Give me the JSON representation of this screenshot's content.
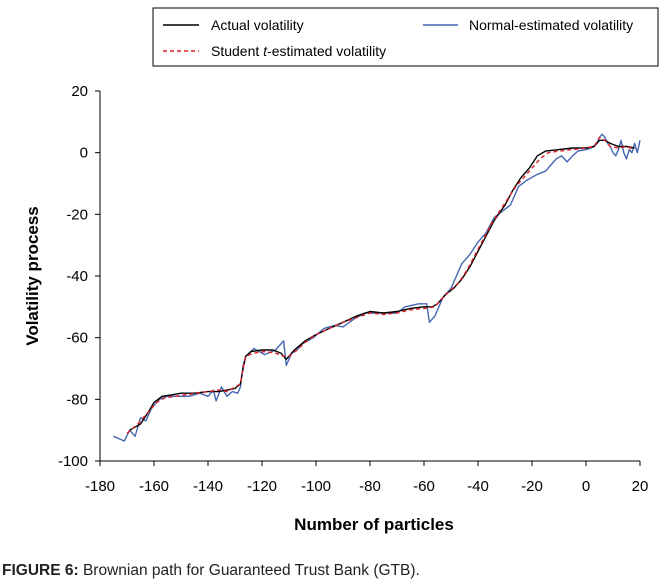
{
  "caption": {
    "label": "FIGURE 6:",
    "text": " Brownian path for Guaranteed Trust Bank (GTB)."
  },
  "chart_data": {
    "type": "line",
    "title": "",
    "xlabel": "Number of particles",
    "ylabel": "Volatility process",
    "xlim": [
      -180,
      20
    ],
    "ylim": [
      -100,
      20
    ],
    "xticks": [
      -180,
      -160,
      -140,
      -120,
      -100,
      -80,
      -60,
      -40,
      -20,
      0,
      20
    ],
    "yticks": [
      -100,
      -80,
      -60,
      -40,
      -20,
      0,
      20
    ],
    "grid": false,
    "legend_position": "top",
    "series": [
      {
        "name": "Actual volatility",
        "color": "#000000",
        "style": "solid",
        "points": [
          [
            -169,
            -90
          ],
          [
            -165,
            -88
          ],
          [
            -162,
            -84
          ],
          [
            -160,
            -81
          ],
          [
            -157,
            -79
          ],
          [
            -153,
            -78.5
          ],
          [
            -150,
            -78
          ],
          [
            -145,
            -78
          ],
          [
            -140,
            -77.5
          ],
          [
            -136,
            -77.5
          ],
          [
            -133,
            -77
          ],
          [
            -130,
            -76.5
          ],
          [
            -128,
            -75
          ],
          [
            -127,
            -70
          ],
          [
            -126,
            -66
          ],
          [
            -124,
            -64.5
          ],
          [
            -120,
            -64
          ],
          [
            -116,
            -64
          ],
          [
            -113,
            -65
          ],
          [
            -111,
            -67
          ],
          [
            -108,
            -64
          ],
          [
            -104,
            -61
          ],
          [
            -100,
            -59
          ],
          [
            -95,
            -57
          ],
          [
            -90,
            -55
          ],
          [
            -85,
            -53
          ],
          [
            -80,
            -51.5
          ],
          [
            -75,
            -52
          ],
          [
            -70,
            -51.5
          ],
          [
            -65,
            -50.5
          ],
          [
            -60,
            -50
          ],
          [
            -57,
            -50
          ],
          [
            -55,
            -49
          ],
          [
            -52,
            -46
          ],
          [
            -49,
            -44
          ],
          [
            -46,
            -41
          ],
          [
            -43,
            -37
          ],
          [
            -40,
            -32
          ],
          [
            -37,
            -27
          ],
          [
            -34,
            -22
          ],
          [
            -30,
            -17
          ],
          [
            -27,
            -12
          ],
          [
            -24,
            -8
          ],
          [
            -21,
            -5
          ],
          [
            -18,
            -1
          ],
          [
            -15,
            0.5
          ],
          [
            -10,
            1
          ],
          [
            -5,
            1.5
          ],
          [
            0,
            1.5
          ],
          [
            3,
            2
          ],
          [
            5,
            4
          ],
          [
            7,
            4
          ],
          [
            9,
            3
          ],
          [
            12,
            2
          ],
          [
            15,
            2
          ],
          [
            18,
            1.5
          ]
        ]
      },
      {
        "name": "Normal-estimated volatility",
        "color": "#4466b0",
        "style": "solid",
        "points": [
          [
            -175,
            -92
          ],
          [
            -171,
            -93.5
          ],
          [
            -169,
            -90
          ],
          [
            -167,
            -92
          ],
          [
            -165,
            -86
          ],
          [
            -163,
            -87
          ],
          [
            -161,
            -83
          ],
          [
            -158,
            -80
          ],
          [
            -155,
            -79
          ],
          [
            -150,
            -79
          ],
          [
            -147,
            -79
          ],
          [
            -143,
            -78
          ],
          [
            -140,
            -79
          ],
          [
            -138,
            -77
          ],
          [
            -137,
            -80.5
          ],
          [
            -135,
            -76
          ],
          [
            -133,
            -79
          ],
          [
            -131,
            -77.5
          ],
          [
            -129,
            -78
          ],
          [
            -128,
            -76
          ],
          [
            -127,
            -69
          ],
          [
            -126,
            -66
          ],
          [
            -123,
            -63.5
          ],
          [
            -119,
            -65.5
          ],
          [
            -115,
            -64
          ],
          [
            -112,
            -61
          ],
          [
            -111,
            -69
          ],
          [
            -109,
            -65
          ],
          [
            -107,
            -64
          ],
          [
            -105,
            -62
          ],
          [
            -101,
            -60
          ],
          [
            -97,
            -57
          ],
          [
            -93,
            -56
          ],
          [
            -90,
            -56.5
          ],
          [
            -86,
            -54
          ],
          [
            -82,
            -52
          ],
          [
            -78,
            -52
          ],
          [
            -74,
            -52
          ],
          [
            -70,
            -52
          ],
          [
            -67,
            -50
          ],
          [
            -62,
            -49
          ],
          [
            -59,
            -49
          ],
          [
            -58,
            -55
          ],
          [
            -56,
            -53
          ],
          [
            -53,
            -47
          ],
          [
            -50,
            -44
          ],
          [
            -48,
            -40
          ],
          [
            -46,
            -36
          ],
          [
            -43,
            -33
          ],
          [
            -40,
            -29
          ],
          [
            -37,
            -26
          ],
          [
            -34,
            -21
          ],
          [
            -31,
            -19
          ],
          [
            -28,
            -17
          ],
          [
            -25,
            -11
          ],
          [
            -22,
            -9
          ],
          [
            -18,
            -7
          ],
          [
            -15,
            -6
          ],
          [
            -13,
            -4
          ],
          [
            -11,
            -2
          ],
          [
            -9,
            -1
          ],
          [
            -7,
            -3
          ],
          [
            -5,
            -1
          ],
          [
            -3,
            0.5
          ],
          [
            0,
            1
          ],
          [
            2,
            1.5
          ],
          [
            4,
            3
          ],
          [
            5,
            5
          ],
          [
            6,
            6
          ],
          [
            7,
            5
          ],
          [
            8,
            3
          ],
          [
            9,
            2
          ],
          [
            10,
            0
          ],
          [
            11,
            -1
          ],
          [
            12,
            1
          ],
          [
            13,
            4
          ],
          [
            14,
            0
          ],
          [
            15,
            -2
          ],
          [
            16,
            1
          ],
          [
            17,
            0
          ],
          [
            18,
            3
          ],
          [
            19,
            0
          ],
          [
            20,
            4
          ]
        ]
      },
      {
        "name": "Student t-estimated volatility",
        "color": "#e0202a",
        "style": "dashed",
        "points": [
          [
            -170,
            -91
          ],
          [
            -166,
            -88
          ],
          [
            -162,
            -84
          ],
          [
            -159,
            -81
          ],
          [
            -156,
            -79.5
          ],
          [
            -152,
            -79
          ],
          [
            -148,
            -78.5
          ],
          [
            -144,
            -78
          ],
          [
            -140,
            -77.5
          ],
          [
            -136,
            -77
          ],
          [
            -133,
            -77.5
          ],
          [
            -130,
            -76
          ],
          [
            -128,
            -75
          ],
          [
            -127,
            -70
          ],
          [
            -126,
            -66
          ],
          [
            -123,
            -65
          ],
          [
            -119,
            -64.5
          ],
          [
            -115,
            -65
          ],
          [
            -112,
            -66
          ],
          [
            -110,
            -66
          ],
          [
            -107,
            -64
          ],
          [
            -104,
            -61.5
          ],
          [
            -100,
            -59
          ],
          [
            -95,
            -57
          ],
          [
            -90,
            -55
          ],
          [
            -85,
            -53.5
          ],
          [
            -80,
            -52
          ],
          [
            -75,
            -52.5
          ],
          [
            -70,
            -52
          ],
          [
            -65,
            -51
          ],
          [
            -60,
            -50.5
          ],
          [
            -56,
            -50
          ],
          [
            -53,
            -47
          ],
          [
            -50,
            -44.5
          ],
          [
            -47,
            -42
          ],
          [
            -44,
            -38
          ],
          [
            -41,
            -33
          ],
          [
            -38,
            -28
          ],
          [
            -35,
            -23
          ],
          [
            -32,
            -19
          ],
          [
            -29,
            -15
          ],
          [
            -26,
            -11
          ],
          [
            -23,
            -8
          ],
          [
            -20,
            -5
          ],
          [
            -17,
            -2
          ],
          [
            -14,
            0
          ],
          [
            -10,
            0.5
          ],
          [
            -5,
            1
          ],
          [
            0,
            1.5
          ],
          [
            3,
            2
          ],
          [
            5,
            5
          ],
          [
            7,
            4
          ],
          [
            9,
            2
          ],
          [
            12,
            1.5
          ],
          [
            15,
            2
          ],
          [
            18,
            1
          ]
        ]
      }
    ]
  }
}
